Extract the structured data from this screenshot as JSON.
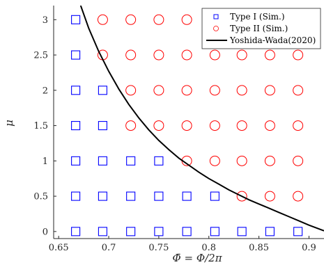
{
  "chart_data": {
    "type": "scatter",
    "xlabel": "Φ̄ = Φ/2π",
    "ylabel": "μ",
    "xlim": [
      0.645,
      0.915
    ],
    "ylim": [
      -0.1,
      3.2
    ],
    "x_ticks": [
      0.65,
      0.7,
      0.75,
      0.8,
      0.85,
      0.9
    ],
    "x_tick_labels": [
      "0.65",
      "0.7",
      "0.75",
      "0.8",
      "0.85",
      "0.9"
    ],
    "y_ticks": [
      0,
      0.5,
      1,
      1.5,
      2,
      2.5,
      3
    ],
    "y_tick_labels": [
      "0",
      "0.5",
      "1",
      "1.5",
      "2",
      "2.5",
      "3"
    ],
    "grid": false,
    "legend_position": "top-right",
    "series": [
      {
        "name": "Type I (Sim.)",
        "marker": "square",
        "color": "#0000ff",
        "points": [
          [
            0.667,
            0
          ],
          [
            0.694,
            0
          ],
          [
            0.722,
            0
          ],
          [
            0.75,
            0
          ],
          [
            0.778,
            0
          ],
          [
            0.806,
            0
          ],
          [
            0.833,
            0
          ],
          [
            0.861,
            0
          ],
          [
            0.889,
            0
          ],
          [
            0.667,
            0.5
          ],
          [
            0.694,
            0.5
          ],
          [
            0.722,
            0.5
          ],
          [
            0.75,
            0.5
          ],
          [
            0.778,
            0.5
          ],
          [
            0.806,
            0.5
          ],
          [
            0.667,
            1
          ],
          [
            0.694,
            1
          ],
          [
            0.722,
            1
          ],
          [
            0.75,
            1
          ],
          [
            0.667,
            1.5
          ],
          [
            0.694,
            1.5
          ],
          [
            0.667,
            2
          ],
          [
            0.694,
            2
          ],
          [
            0.667,
            2.5
          ],
          [
            0.667,
            3
          ]
        ]
      },
      {
        "name": "Type II (Sim.)",
        "marker": "circle",
        "color": "#ff0000",
        "points": [
          [
            0.833,
            0.5
          ],
          [
            0.861,
            0.5
          ],
          [
            0.889,
            0.5
          ],
          [
            0.778,
            1
          ],
          [
            0.806,
            1
          ],
          [
            0.833,
            1
          ],
          [
            0.861,
            1
          ],
          [
            0.889,
            1
          ],
          [
            0.722,
            1.5
          ],
          [
            0.75,
            1.5
          ],
          [
            0.778,
            1.5
          ],
          [
            0.806,
            1.5
          ],
          [
            0.833,
            1.5
          ],
          [
            0.861,
            1.5
          ],
          [
            0.889,
            1.5
          ],
          [
            0.722,
            2
          ],
          [
            0.75,
            2
          ],
          [
            0.778,
            2
          ],
          [
            0.806,
            2
          ],
          [
            0.833,
            2
          ],
          [
            0.861,
            2
          ],
          [
            0.889,
            2
          ],
          [
            0.694,
            2.5
          ],
          [
            0.722,
            2.5
          ],
          [
            0.75,
            2.5
          ],
          [
            0.778,
            2.5
          ],
          [
            0.806,
            2.5
          ],
          [
            0.833,
            2.5
          ],
          [
            0.861,
            2.5
          ],
          [
            0.889,
            2.5
          ],
          [
            0.694,
            3
          ],
          [
            0.722,
            3
          ],
          [
            0.75,
            3
          ],
          [
            0.778,
            3
          ],
          [
            0.806,
            3
          ],
          [
            0.833,
            3
          ],
          [
            0.861,
            3
          ],
          [
            0.889,
            3
          ]
        ]
      },
      {
        "name": "Yoshida-Wada(2020)",
        "marker": "line",
        "color": "#000000",
        "points": [
          [
            0.672,
            3.2
          ],
          [
            0.68,
            2.88
          ],
          [
            0.69,
            2.55
          ],
          [
            0.7,
            2.27
          ],
          [
            0.71,
            2.02
          ],
          [
            0.72,
            1.8
          ],
          [
            0.73,
            1.61
          ],
          [
            0.74,
            1.44
          ],
          [
            0.75,
            1.29
          ],
          [
            0.76,
            1.16
          ],
          [
            0.77,
            1.04
          ],
          [
            0.78,
            0.94
          ],
          [
            0.79,
            0.84
          ],
          [
            0.8,
            0.75
          ],
          [
            0.81,
            0.67
          ],
          [
            0.82,
            0.59
          ],
          [
            0.83,
            0.52
          ],
          [
            0.84,
            0.45
          ],
          [
            0.85,
            0.39
          ],
          [
            0.86,
            0.33
          ],
          [
            0.87,
            0.27
          ],
          [
            0.88,
            0.21
          ],
          [
            0.89,
            0.15
          ],
          [
            0.9,
            0.09
          ],
          [
            0.915,
            0.01
          ]
        ]
      }
    ]
  }
}
